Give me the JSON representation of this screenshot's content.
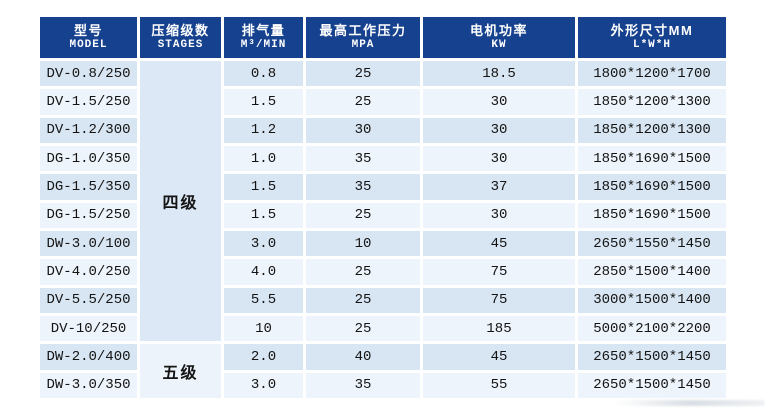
{
  "table": {
    "header": {
      "columns": [
        {
          "zh": "型号",
          "en": "MODEL"
        },
        {
          "zh": "压缩级数",
          "en": "STAGES"
        },
        {
          "zh": "排气量",
          "en": "M³/MIN"
        },
        {
          "zh": "最高工作压力",
          "en": "MPA"
        },
        {
          "zh": "电机功率",
          "en": "KW"
        },
        {
          "zh": "外形尺寸MM",
          "en": "L*W*H"
        }
      ]
    },
    "stage_groups": [
      {
        "label": "四级",
        "row_start": 1,
        "row_span": 10
      },
      {
        "label": "五级",
        "row_start": 11,
        "row_span": 2
      }
    ],
    "rows": [
      {
        "model": "DV-0.8/250",
        "displacement": "0.8",
        "pressure": "25",
        "power": "18.5",
        "dimensions": "1800*1200*1700"
      },
      {
        "model": "DV-1.5/250",
        "displacement": "1.5",
        "pressure": "25",
        "power": "30",
        "dimensions": "1850*1200*1300"
      },
      {
        "model": "DV-1.2/300",
        "displacement": "1.2",
        "pressure": "30",
        "power": "30",
        "dimensions": "1850*1200*1300"
      },
      {
        "model": "DG-1.0/350",
        "displacement": "1.0",
        "pressure": "35",
        "power": "30",
        "dimensions": "1850*1690*1500"
      },
      {
        "model": "DG-1.5/350",
        "displacement": "1.5",
        "pressure": "35",
        "power": "37",
        "dimensions": "1850*1690*1500"
      },
      {
        "model": "DG-1.5/250",
        "displacement": "1.5",
        "pressure": "25",
        "power": "30",
        "dimensions": "1850*1690*1500"
      },
      {
        "model": "DW-3.0/100",
        "displacement": "3.0",
        "pressure": "10",
        "power": "45",
        "dimensions": "2650*1550*1450"
      },
      {
        "model": "DV-4.0/250",
        "displacement": "4.0",
        "pressure": "25",
        "power": "75",
        "dimensions": "2850*1500*1400"
      },
      {
        "model": "DV-5.5/250",
        "displacement": "5.5",
        "pressure": "25",
        "power": "75",
        "dimensions": "3000*1500*1400"
      },
      {
        "model": "DV-10/250",
        "displacement": "10",
        "pressure": "25",
        "power": "185",
        "dimensions": "5000*2100*2200"
      },
      {
        "model": "DW-2.0/400",
        "displacement": "2.0",
        "pressure": "40",
        "power": "45",
        "dimensions": "2650*1500*1450"
      },
      {
        "model": "DW-3.0/350",
        "displacement": "3.0",
        "pressure": "35",
        "power": "55",
        "dimensions": "2650*1500*1450"
      }
    ]
  },
  "colors": {
    "header_bg": "#15418e",
    "row_blue": "#d8e5f2",
    "row_light": "#eef4fb",
    "stage_blue": "#dce8f5",
    "stage_light": "#edf3fa",
    "text": "#141414"
  }
}
